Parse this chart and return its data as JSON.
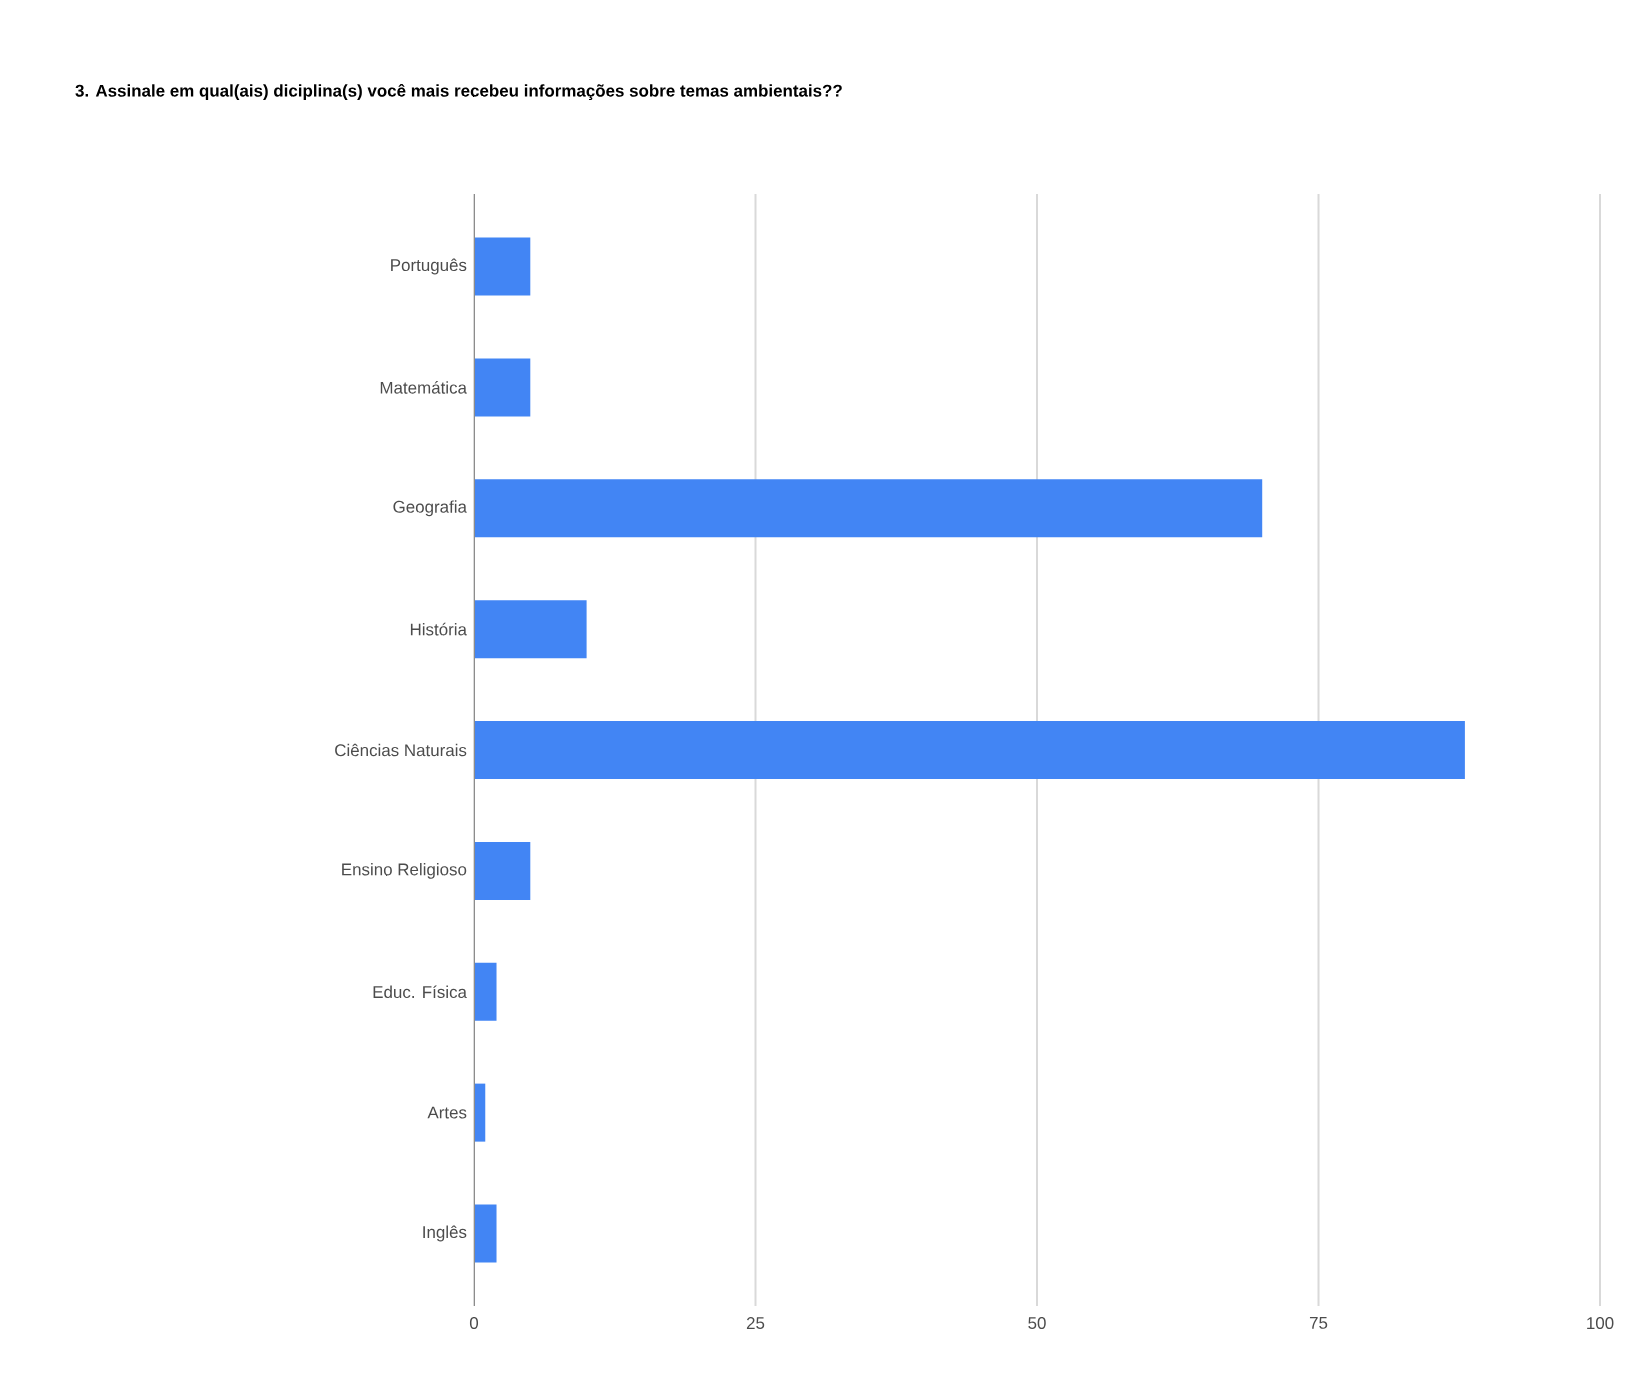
{
  "chart_data": {
    "type": "bar",
    "orientation": "horizontal",
    "title": "3. Assinale em qual(ais) diciplina(s) você mais recebeu informações sobre temas ambientais??",
    "categories": [
      "Português",
      "Matemática",
      "Geografia",
      "História",
      "Ciências Naturais",
      "Ensino Religioso",
      "Educ. Física",
      "Artes",
      "Inglês"
    ],
    "values": [
      5,
      5,
      70,
      10,
      88,
      5,
      2,
      1,
      2
    ],
    "color": "#4285f4",
    "xlim": [
      0,
      100
    ],
    "xticks": [
      0,
      25,
      50,
      75,
      100
    ],
    "grid": "x"
  }
}
